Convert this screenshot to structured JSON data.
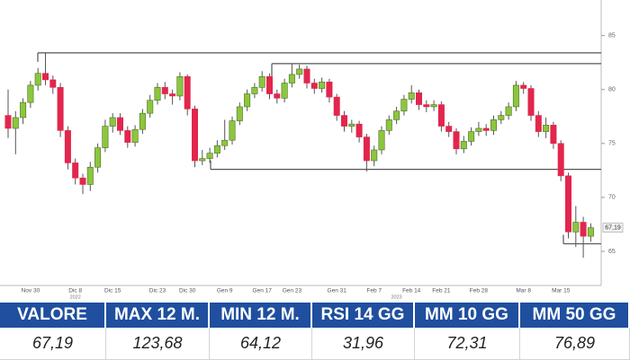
{
  "chart_data": {
    "type": "candlestick",
    "categories": [
      null,
      null,
      null,
      "Nov 30",
      null,
      null,
      null,
      null,
      null,
      "Dic 8",
      null,
      null,
      null,
      null,
      "Dic 15",
      null,
      null,
      null,
      null,
      null,
      "Dic 23",
      null,
      null,
      null,
      "Dic 30",
      null,
      null,
      null,
      null,
      "Gen 9",
      null,
      null,
      null,
      null,
      "Gen 17",
      null,
      null,
      null,
      "Gen 23",
      null,
      null,
      null,
      null,
      null,
      "Gen 31",
      null,
      null,
      null,
      null,
      "Feb 7",
      null,
      null,
      null,
      null,
      "Feb 14",
      null,
      null,
      null,
      "Feb 21",
      null,
      null,
      null,
      null,
      "Feb 28",
      null,
      null,
      null,
      null,
      null,
      "Mar 8",
      null,
      null,
      null,
      null,
      "Mar 15",
      null,
      null,
      null,
      null
    ],
    "years": [
      "2022",
      "2023"
    ],
    "open": [
      77.6,
      76.4,
      77.4,
      78.8,
      80.4,
      81.5,
      80.9,
      80.2,
      76.2,
      73.2,
      71.8,
      71.2,
      72.8,
      74.6,
      76.6,
      77.4,
      76.2,
      75.1,
      76.3,
      77.8,
      79.0,
      80.2,
      79.6,
      79.4,
      81.2,
      78.2,
      73.4,
      73.6,
      74.1,
      74.8,
      75.3,
      77.1,
      78.4,
      79.6,
      80.2,
      81.2,
      79.6,
      79.2,
      80.6,
      81.4,
      81.9,
      80.6,
      80.1,
      80.7,
      79.3,
      77.6,
      76.6,
      76.8,
      75.6,
      73.4,
      74.4,
      76.2,
      77.2,
      78.0,
      79.1,
      79.7,
      78.6,
      78.4,
      78.6,
      76.6,
      76.1,
      74.5,
      75.2,
      76.1,
      76.4,
      76.2,
      77.2,
      77.6,
      78.4,
      80.4,
      80.1,
      77.6,
      76.1,
      76.7,
      75.0,
      72.0,
      66.8,
      67.7,
      66.4
    ],
    "high": [
      80.0,
      78.0,
      79.2,
      80.8,
      82.0,
      83.4,
      81.3,
      80.6,
      76.6,
      73.6,
      72.2,
      73.3,
      75.0,
      77.2,
      77.8,
      77.8,
      76.6,
      76.7,
      78.2,
      79.5,
      80.6,
      80.7,
      80.0,
      81.6,
      81.4,
      78.5,
      74.4,
      74.6,
      75.3,
      77.2,
      77.5,
      78.8,
      80.0,
      80.6,
      81.7,
      81.5,
      80.0,
      81.0,
      82.4,
      82.3,
      82.2,
      81.0,
      81.1,
      81.0,
      79.6,
      78.0,
      77.2,
      77.1,
      75.9,
      74.8,
      76.6,
      77.6,
      78.4,
      79.5,
      80.4,
      80.0,
      79.0,
      79.0,
      78.9,
      77.0,
      76.4,
      75.7,
      76.5,
      77.0,
      76.8,
      77.6,
      78.0,
      78.8,
      80.8,
      80.7,
      80.4,
      78.0,
      77.4,
      77.0,
      75.3,
      72.3,
      69.2,
      68.2,
      67.6
    ],
    "low": [
      75.5,
      74.0,
      76.8,
      78.3,
      79.9,
      80.4,
      79.6,
      75.6,
      72.6,
      71.2,
      70.3,
      70.6,
      72.3,
      74.2,
      76.0,
      75.8,
      74.6,
      74.7,
      75.9,
      77.4,
      78.6,
      79.1,
      78.6,
      79.0,
      77.6,
      72.8,
      73.0,
      73.2,
      73.7,
      74.4,
      74.9,
      76.7,
      78.0,
      79.2,
      79.8,
      79.1,
      78.7,
      78.8,
      80.2,
      81.0,
      80.1,
      79.6,
      79.7,
      78.8,
      77.1,
      76.1,
      76.0,
      75.1,
      72.4,
      72.9,
      74.0,
      75.8,
      76.8,
      77.6,
      78.7,
      78.1,
      77.9,
      78.0,
      76.1,
      75.6,
      74.0,
      74.1,
      74.8,
      75.7,
      75.7,
      75.8,
      76.8,
      77.2,
      78.0,
      79.6,
      77.1,
      75.6,
      75.5,
      74.5,
      71.5,
      66.2,
      65.4,
      64.4,
      65.9
    ],
    "close": [
      76.4,
      77.4,
      78.8,
      80.4,
      81.5,
      80.9,
      80.2,
      76.2,
      73.2,
      71.8,
      71.2,
      72.8,
      74.6,
      76.6,
      77.4,
      76.2,
      75.1,
      76.3,
      77.8,
      79.0,
      80.2,
      79.6,
      79.4,
      81.2,
      78.2,
      73.4,
      73.6,
      74.1,
      74.8,
      75.3,
      77.1,
      78.4,
      79.6,
      80.2,
      81.2,
      79.6,
      79.2,
      80.6,
      81.4,
      81.9,
      80.6,
      80.1,
      80.7,
      79.3,
      77.6,
      76.6,
      76.8,
      75.6,
      73.4,
      74.4,
      76.2,
      77.2,
      78.0,
      79.1,
      79.7,
      78.6,
      78.4,
      78.6,
      76.6,
      76.1,
      74.5,
      75.2,
      76.1,
      76.4,
      76.2,
      77.2,
      77.6,
      78.4,
      80.4,
      80.1,
      77.6,
      76.1,
      76.7,
      75.0,
      72.0,
      66.8,
      67.7,
      66.4,
      67.19
    ],
    "last_label": "67,19",
    "up_color": "#8cc63e",
    "down_color": "#e2264d",
    "levels": [
      83.4,
      82.4,
      72.6,
      65.7
    ],
    "ylim": [
      62,
      88.3
    ],
    "yticks": [
      65,
      70,
      75,
      80,
      85
    ]
  },
  "table": {
    "headers": [
      "VALORE",
      "MAX 12 M.",
      "MIN 12 M.",
      "RSI 14 GG",
      "MM 10 GG",
      "MM 50 GG"
    ],
    "values": [
      "67,19",
      "123,68",
      "64,12",
      "31,96",
      "72,31",
      "76,89"
    ]
  }
}
